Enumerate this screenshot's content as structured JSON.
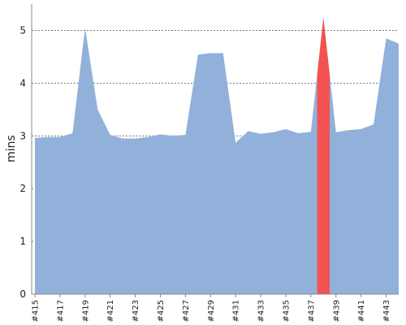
{
  "chart_data": {
    "type": "area",
    "ylabel": "mins",
    "ylim": [
      0,
      5.5
    ],
    "yticks": [
      0,
      1,
      2,
      3,
      4,
      5
    ],
    "grid": true,
    "x": [
      "#415",
      "#416",
      "#417",
      "#418",
      "#419",
      "#420",
      "#421",
      "#422",
      "#423",
      "#424",
      "#425",
      "#426",
      "#427",
      "#428",
      "#429",
      "#430",
      "#431",
      "#432",
      "#433",
      "#434",
      "#435",
      "#436",
      "#437",
      "#438",
      "#439",
      "#440",
      "#441",
      "#442",
      "#443",
      "#444"
    ],
    "x_tick_labels": [
      "#415",
      "#417",
      "#419",
      "#421",
      "#423",
      "#425",
      "#427",
      "#429",
      "#431",
      "#433",
      "#435",
      "#437",
      "#439",
      "#441",
      "#443"
    ],
    "series": [
      {
        "values": [
          2.96,
          2.98,
          2.98,
          3.05,
          5.05,
          3.5,
          3.02,
          2.95,
          2.95,
          2.98,
          3.03,
          3.0,
          3.02,
          4.54,
          4.57,
          4.57,
          2.87,
          3.09,
          3.04,
          3.07,
          3.13,
          3.05,
          3.08,
          5.24,
          3.07,
          3.11,
          3.13,
          3.22,
          4.85,
          4.75
        ],
        "color": "#91b1da"
      }
    ],
    "highlight": {
      "x": "#438",
      "color": "#f25252"
    }
  }
}
